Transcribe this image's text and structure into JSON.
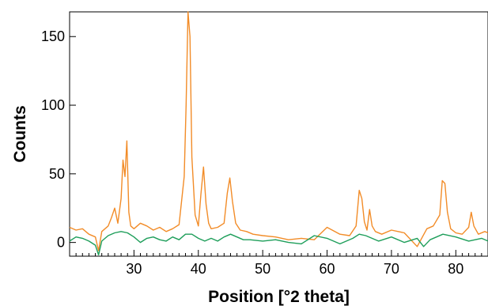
{
  "chart_data": {
    "type": "line",
    "title": "",
    "xlabel": "Position [°2 theta]",
    "ylabel": "Counts",
    "xlim": [
      20,
      85
    ],
    "ylim": [
      -10,
      168
    ],
    "x_ticks": [
      30,
      40,
      50,
      60,
      70,
      80
    ],
    "y_ticks": [
      0,
      50,
      100,
      150
    ],
    "grid": false,
    "legend": "none",
    "series": [
      {
        "name": "",
        "color": "#F28C28",
        "x": [
          20.0,
          21.0,
          22.0,
          23.0,
          24.0,
          24.5,
          25.0,
          26.0,
          26.5,
          27.0,
          27.5,
          28.0,
          28.3,
          28.6,
          28.9,
          29.2,
          29.5,
          30.0,
          31.0,
          32.0,
          33.0,
          34.0,
          35.0,
          36.0,
          37.0,
          37.8,
          38.1,
          38.4,
          38.7,
          39.0,
          39.5,
          40.0,
          40.4,
          40.8,
          41.2,
          41.6,
          42.0,
          43.0,
          44.0,
          44.5,
          44.9,
          45.3,
          45.8,
          46.5,
          47.5,
          48.5,
          50.0,
          52.0,
          54.0,
          56.0,
          58.0,
          60.0,
          62.0,
          63.5,
          64.5,
          65.0,
          65.4,
          65.8,
          66.2,
          66.6,
          67.0,
          67.5,
          68.5,
          70.0,
          72.0,
          74.0,
          75.5,
          76.5,
          77.5,
          77.9,
          78.3,
          78.7,
          79.2,
          80.0,
          81.0,
          82.0,
          82.4,
          82.8,
          83.5,
          84.5,
          85.0
        ],
        "y": [
          11,
          9,
          10,
          6,
          4,
          -6,
          8,
          12,
          18,
          25,
          14,
          32,
          60,
          48,
          74,
          22,
          12,
          10,
          14,
          12,
          9,
          11,
          8,
          10,
          13,
          48,
          100,
          168,
          150,
          62,
          20,
          12,
          35,
          55,
          28,
          14,
          10,
          11,
          14,
          36,
          47,
          30,
          14,
          9,
          8,
          6,
          5,
          4,
          2,
          3,
          2,
          11,
          6,
          5,
          12,
          38,
          32,
          15,
          9,
          24,
          12,
          8,
          6,
          9,
          7,
          -3,
          10,
          12,
          20,
          45,
          43,
          22,
          10,
          7,
          6,
          11,
          22,
          12,
          6,
          8,
          7
        ]
      },
      {
        "name": "",
        "color": "#1E9E5A",
        "x": [
          20.0,
          21.0,
          22.0,
          23.0,
          24.0,
          24.5,
          25.0,
          26.0,
          27.0,
          28.0,
          29.0,
          30.0,
          31.0,
          32.0,
          33.0,
          34.0,
          35.0,
          36.0,
          37.0,
          38.0,
          39.0,
          40.0,
          41.0,
          42.0,
          43.0,
          44.0,
          45.0,
          46.0,
          47.0,
          48.0,
          50.0,
          52.0,
          54.0,
          56.0,
          58.0,
          60.0,
          62.0,
          64.0,
          65.0,
          66.0,
          68.0,
          70.0,
          72.0,
          74.0,
          75.0,
          76.0,
          78.0,
          80.0,
          82.0,
          84.0,
          85.0
        ],
        "y": [
          1,
          4,
          3,
          1,
          -2,
          -9,
          1,
          5,
          7,
          8,
          7,
          4,
          0,
          3,
          4,
          2,
          1,
          4,
          2,
          6,
          6,
          3,
          1,
          3,
          1,
          4,
          6,
          4,
          2,
          2,
          1,
          2,
          0,
          -1,
          5,
          3,
          -1,
          3,
          6,
          5,
          1,
          4,
          0,
          3,
          -3,
          2,
          6,
          4,
          1,
          3,
          1
        ]
      }
    ]
  }
}
